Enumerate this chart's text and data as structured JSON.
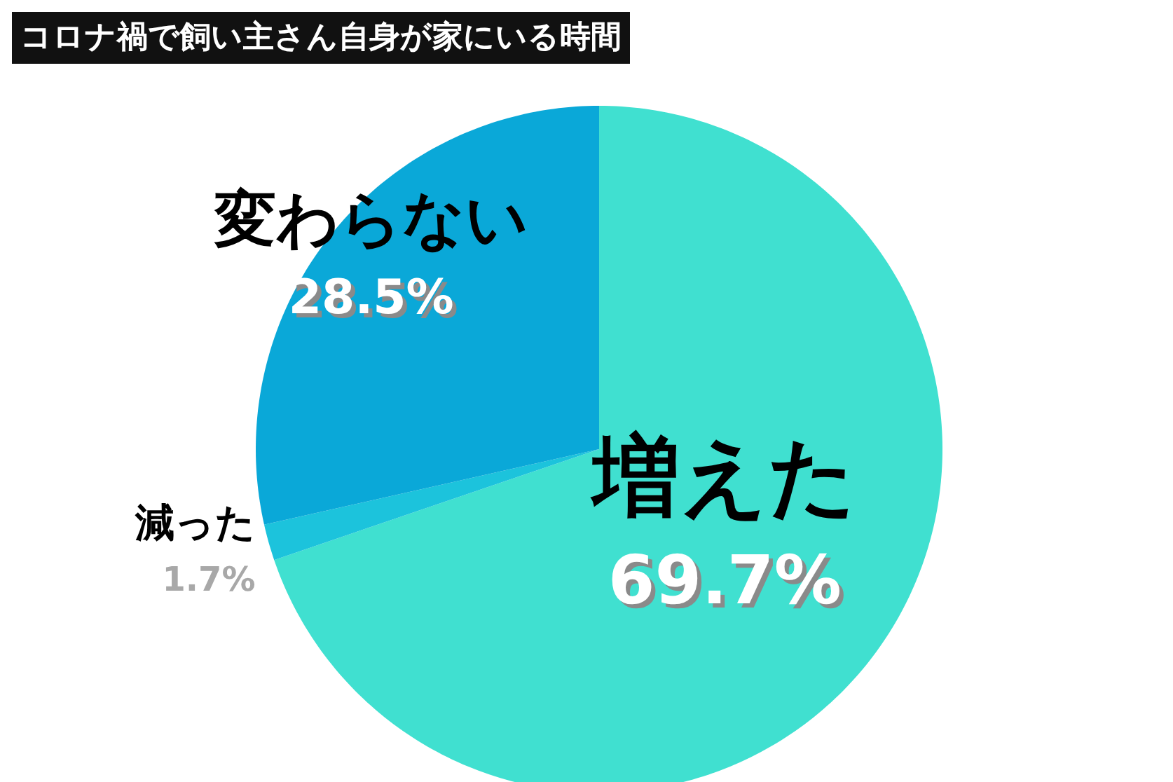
{
  "chart_data": {
    "type": "pie",
    "title": "コロナ禍で飼い主さん自身が家にいる時間",
    "categories": [
      "増えた",
      "減った",
      "変わらない"
    ],
    "values": [
      69.7,
      1.7,
      28.5
    ],
    "colors": [
      "#40e0d0",
      "#1cc3dc",
      "#0aa8d8"
    ],
    "value_labels": [
      "69.7%",
      "1.7%",
      "28.5%"
    ],
    "legend": false
  }
}
